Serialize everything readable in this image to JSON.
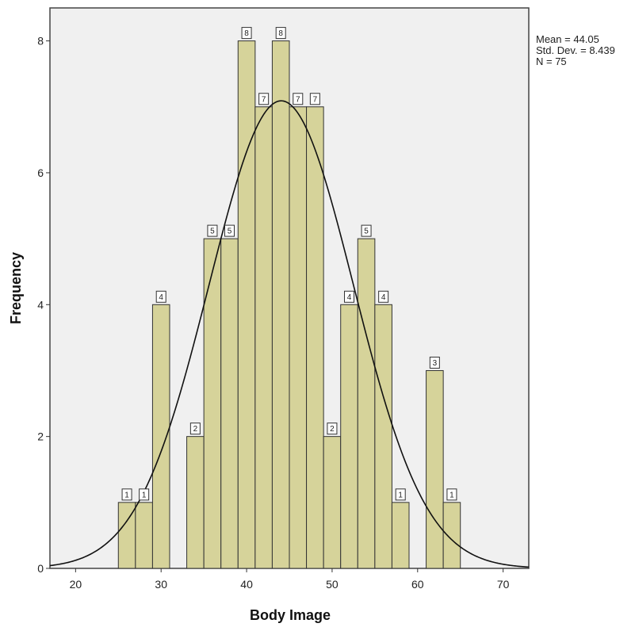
{
  "chart_data": {
    "type": "bar",
    "xlabel": "Body Image",
    "ylabel": "Frequency",
    "xlim": [
      17,
      73
    ],
    "ylim": [
      0,
      8.5
    ],
    "x_ticks": [
      20,
      30,
      40,
      50,
      60,
      70
    ],
    "y_ticks": [
      0,
      2,
      4,
      6,
      8
    ],
    "bin_width": 2,
    "bins": [
      {
        "start": 25,
        "value": 1
      },
      {
        "start": 27,
        "value": 1
      },
      {
        "start": 29,
        "value": 4
      },
      {
        "start": 33,
        "value": 2
      },
      {
        "start": 35,
        "value": 5
      },
      {
        "start": 37,
        "value": 5
      },
      {
        "start": 39,
        "value": 8
      },
      {
        "start": 41,
        "value": 7
      },
      {
        "start": 43,
        "value": 8
      },
      {
        "start": 45,
        "value": 7
      },
      {
        "start": 47,
        "value": 7
      },
      {
        "start": 49,
        "value": 2
      },
      {
        "start": 51,
        "value": 4
      },
      {
        "start": 53,
        "value": 5
      },
      {
        "start": 55,
        "value": 4
      },
      {
        "start": 57,
        "value": 1
      },
      {
        "start": 61,
        "value": 3
      },
      {
        "start": 63,
        "value": 1
      }
    ],
    "normal_curve": {
      "mean": 44.05,
      "sd": 8.439,
      "n": 75
    },
    "colors": {
      "bar_fill": "#d6d39a",
      "bar_stroke": "#333333",
      "plot_bg": "#f0f0f0",
      "curve": "#111111"
    }
  },
  "stats": {
    "mean_label": "Mean = 44.05",
    "sd_label": "Std. Dev. = 8.439",
    "n_label": "N = 75"
  }
}
